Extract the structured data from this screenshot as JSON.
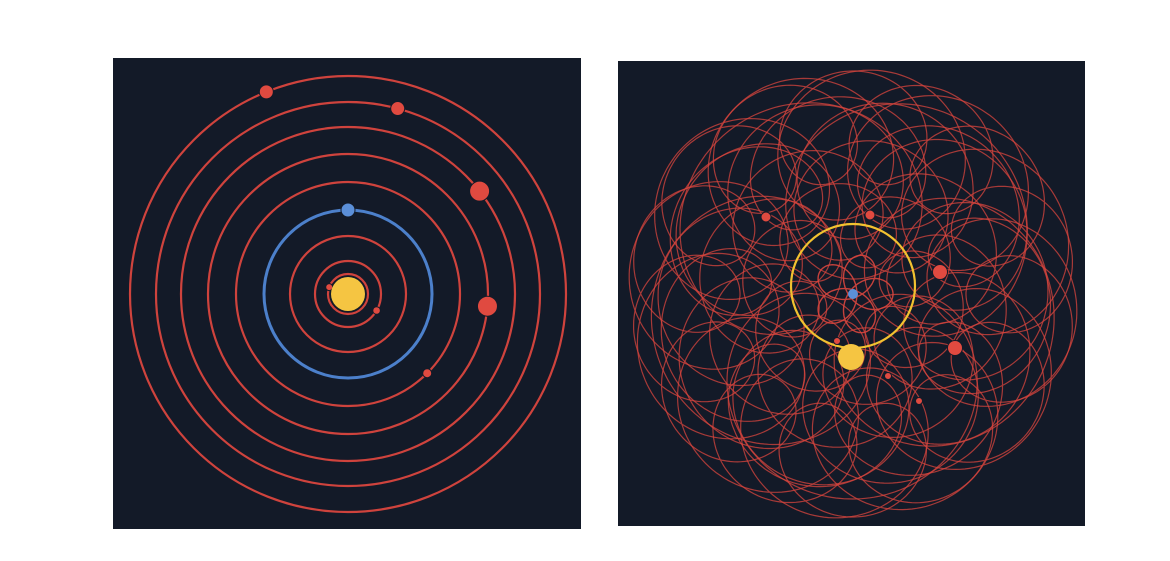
{
  "colors": {
    "background": "#ffffff",
    "panel": "#131a28",
    "orbit": "#d9463e",
    "planet": "#e04a40",
    "earth_orbit": "#4f86d4",
    "earth": "#5b8fd8",
    "sun": "#f5c542",
    "sun_path": "#f2c230"
  },
  "panels": [
    {
      "id": "heliocentric",
      "center_body": "sun",
      "orbits": 8,
      "highlighted_orbit": "earth"
    },
    {
      "id": "geocentric",
      "center_body": "earth",
      "highlighted_path": "sun",
      "tangle": "epicycle-loops"
    }
  ]
}
